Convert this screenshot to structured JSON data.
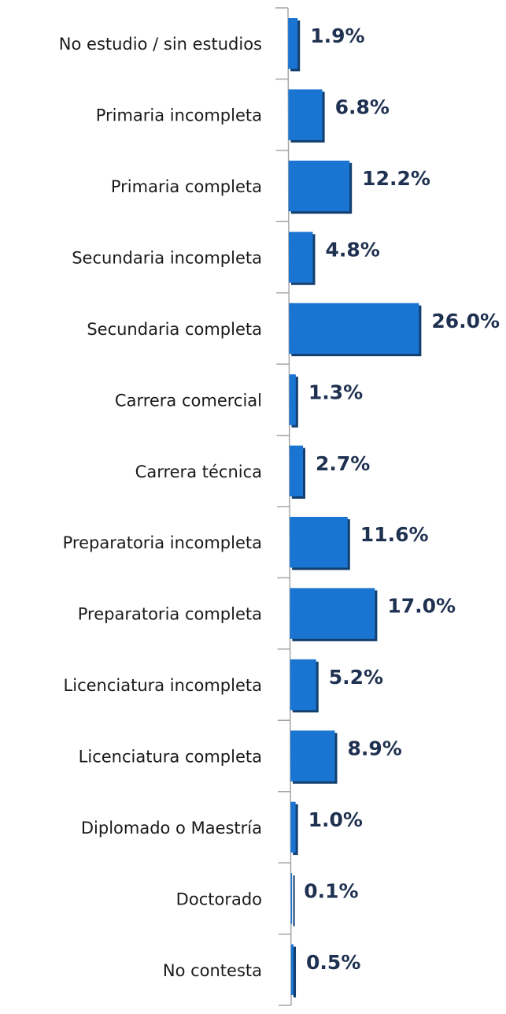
{
  "chart_data": {
    "type": "bar",
    "orientation": "horizontal",
    "color": "#1a75d2",
    "categories": [
      "No estudio / sin estudios",
      "Primaria incompleta",
      "Primaria completa",
      "Secundaria incompleta",
      "Secundaria completa",
      "Carrera comercial",
      "Carrera técnica",
      "Preparatoria incompleta",
      "Preparatoria completa",
      "Licenciatura incompleta",
      "Licenciatura completa",
      "Diplomado o Maestría",
      "Doctorado",
      "No contesta"
    ],
    "values": [
      1.9,
      6.8,
      12.2,
      4.8,
      26.0,
      1.3,
      2.7,
      11.6,
      17.0,
      5.2,
      8.9,
      1.0,
      0.1,
      0.5
    ],
    "value_labels": [
      "1.9%",
      "6.8%",
      "12.2%",
      "4.8%",
      "26.0%",
      "1.3%",
      "2.7%",
      "11.6%",
      "17.0%",
      "5.2%",
      "8.9%",
      "1.0%",
      "0.1%",
      "0.5%"
    ]
  }
}
